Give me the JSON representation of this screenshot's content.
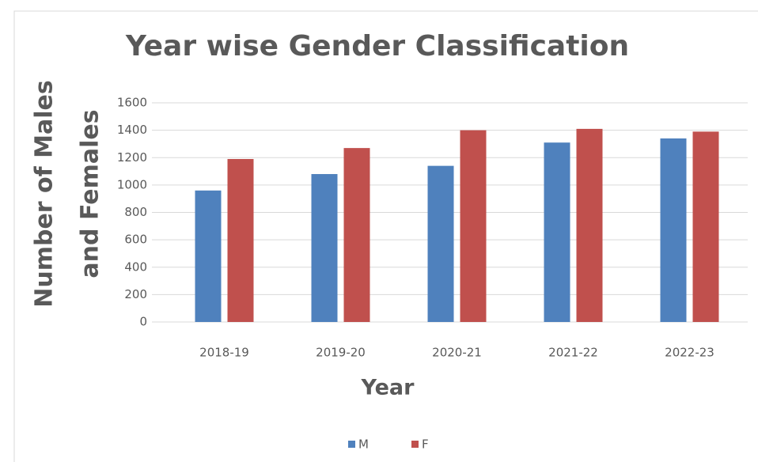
{
  "chart_data": {
    "type": "bar",
    "title": "Year wise Gender Classification",
    "ylabel": [
      "Number of Males",
      "and Females"
    ],
    "xlabel": "Year",
    "categories": [
      "2018-19",
      "2019-20",
      "2020-21",
      "2021-22",
      "2022-23"
    ],
    "series": [
      {
        "name": "M",
        "color": "#4f81bd",
        "values": [
          960,
          1080,
          1140,
          1310,
          1340
        ]
      },
      {
        "name": "F",
        "color": "#c0504d",
        "values": [
          1190,
          1270,
          1400,
          1410,
          1390
        ]
      }
    ],
    "ylim": [
      0,
      1600
    ],
    "yticks": [
      0,
      200,
      400,
      600,
      800,
      1000,
      1200,
      1400,
      1600
    ],
    "grid": true,
    "legend": "bottom"
  }
}
